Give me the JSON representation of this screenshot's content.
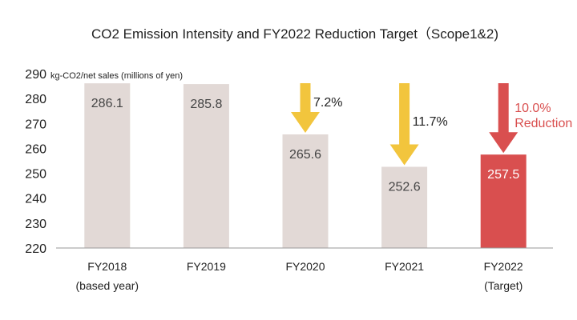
{
  "chart_data": {
    "type": "bar",
    "title": "CO2 Emission Intensity and FY2022 Reduction Target（Scope1&2)",
    "ylabel": "kg-CO2/net sales (millions of yen)",
    "ylim": [
      220,
      290
    ],
    "yticks": [
      "220",
      "230",
      "240",
      "250",
      "260",
      "270",
      "280",
      "290"
    ],
    "categories": [
      "FY2018",
      "FY2019",
      "FY2020",
      "FY2021",
      "FY2022"
    ],
    "category_notes": [
      "(based year)",
      "",
      "",
      "",
      "(Target)"
    ],
    "values": [
      286.1,
      285.8,
      265.6,
      252.6,
      257.5
    ],
    "value_labels": [
      "286.1",
      "285.8",
      "265.6",
      "252.6",
      "257.5"
    ],
    "reductions": [
      {
        "category": "FY2020",
        "label": "7.2%",
        "color": "#f2c53d"
      },
      {
        "category": "FY2021",
        "label": "11.7%",
        "color": "#f2c53d"
      },
      {
        "category": "FY2022",
        "label": "10.0%\nReduction",
        "color": "#d94f4f"
      }
    ],
    "grid": false,
    "colors": {
      "bar": "#e2d9d6",
      "target_bar": "#d94f4f",
      "arrow": "#f2c53d",
      "target_arrow": "#d94f4f",
      "text": "#222222",
      "value_text": "#444444",
      "target_value_text": "#ffffff",
      "axis": "#999999"
    }
  }
}
